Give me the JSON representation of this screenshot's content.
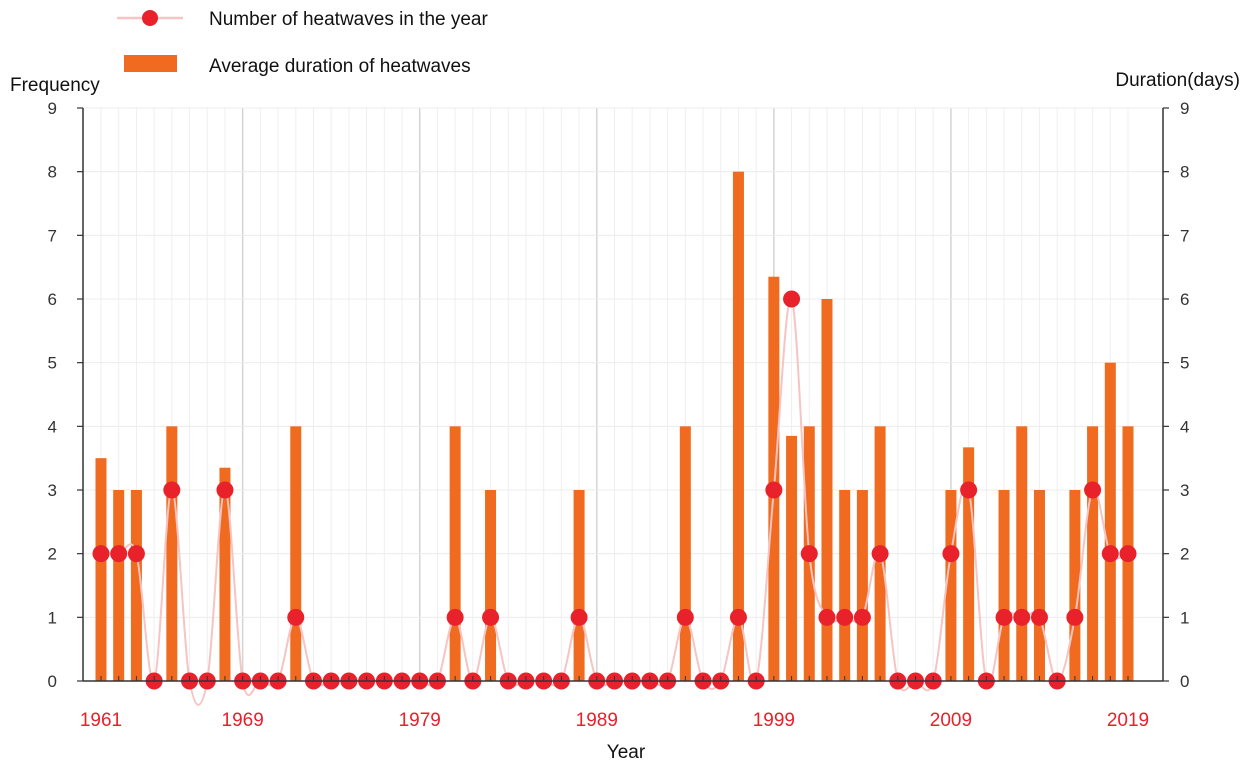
{
  "chart_data": {
    "type": "bar",
    "xlabel": "Year",
    "y_left_label": "Frequency",
    "y_right_label": "Duration(days)",
    "ylim": [
      0,
      9
    ],
    "yticks": [
      "0",
      "1",
      "2",
      "3",
      "4",
      "5",
      "6",
      "7",
      "8",
      "9"
    ],
    "grid": true,
    "legend_placement": "top-left",
    "x_tick_labels": [
      "1961",
      "1969",
      "1979",
      "1989",
      "1999",
      "2009",
      "2019"
    ],
    "x": [
      1961,
      1962,
      1963,
      1964,
      1965,
      1966,
      1967,
      1968,
      1969,
      1970,
      1971,
      1972,
      1973,
      1974,
      1975,
      1976,
      1977,
      1978,
      1979,
      1980,
      1981,
      1982,
      1983,
      1984,
      1985,
      1986,
      1987,
      1988,
      1989,
      1990,
      1991,
      1992,
      1993,
      1994,
      1995,
      1996,
      1997,
      1998,
      1999,
      2000,
      2001,
      2002,
      2003,
      2004,
      2005,
      2006,
      2007,
      2008,
      2009,
      2010,
      2011,
      2012,
      2013,
      2014,
      2015,
      2016,
      2017,
      2018,
      2019
    ],
    "series": [
      {
        "name": "Number of heatwaves in the year",
        "kind": "line-marker",
        "color": "#e8212b",
        "line_color": "#f6c4c2",
        "values": [
          2,
          2,
          2,
          0,
          3,
          0,
          0,
          3,
          0,
          0,
          0,
          1,
          0,
          0,
          0,
          0,
          0,
          0,
          0,
          0,
          1,
          0,
          1,
          0,
          0,
          0,
          0,
          1,
          0,
          0,
          0,
          0,
          0,
          1,
          0,
          0,
          1,
          0,
          3,
          6,
          2,
          1,
          1,
          1,
          2,
          0,
          0,
          0,
          2,
          3,
          0,
          1,
          1,
          1,
          0,
          1,
          3,
          2,
          2
        ]
      },
      {
        "name": "Average duration of heatwaves",
        "kind": "bar",
        "color": "#f06a1f",
        "values": [
          3.5,
          3,
          3,
          0,
          4,
          0,
          0,
          3.35,
          0,
          0,
          0,
          4,
          0,
          0,
          0,
          0,
          0,
          0,
          0,
          0,
          4,
          0,
          3,
          0,
          0,
          0,
          0,
          3,
          0,
          0,
          0,
          0,
          0,
          4,
          0,
          0,
          8,
          0,
          6.35,
          3.85,
          4,
          6,
          3,
          3,
          4,
          0,
          0,
          0,
          3,
          3.67,
          0,
          3,
          4,
          3,
          0,
          3,
          4,
          5,
          4
        ]
      }
    ]
  }
}
